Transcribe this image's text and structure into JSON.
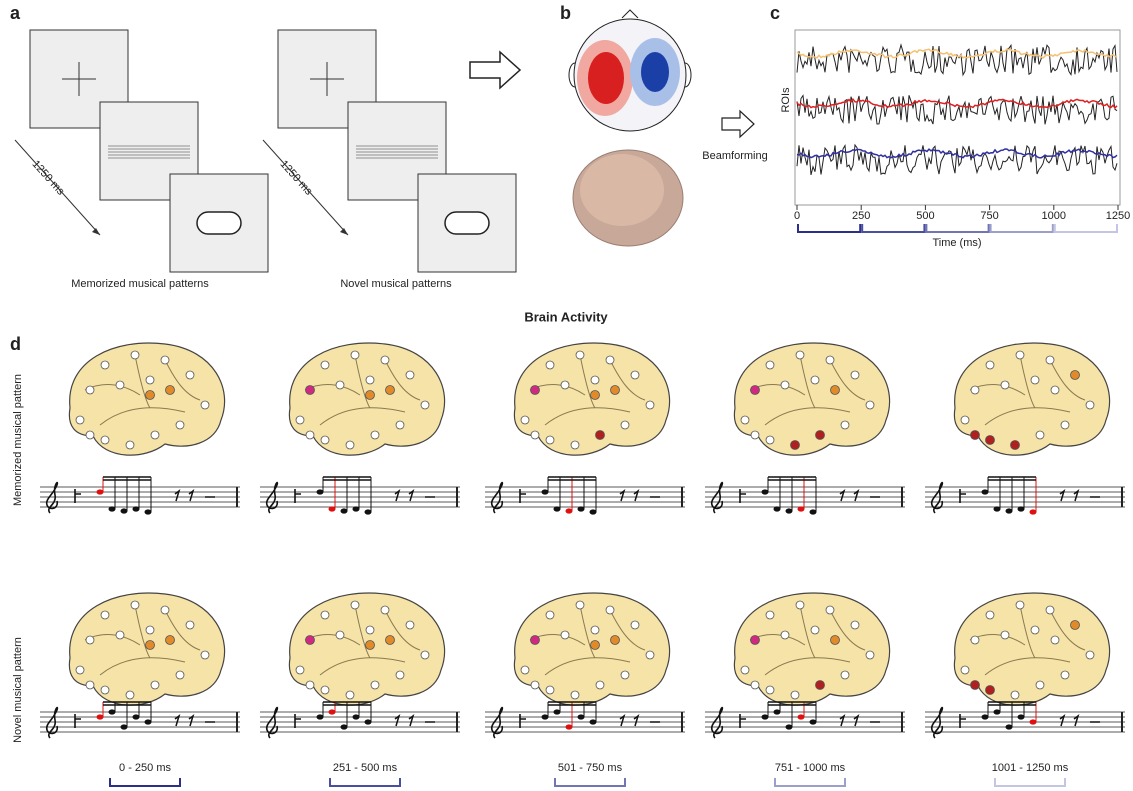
{
  "panel_a": {
    "label": "a",
    "interval_1": "1250 ms",
    "interval_2": "1250 ms",
    "caption_1": "Memorized musical patterns",
    "caption_2": "Novel musical patterns"
  },
  "panel_b": {
    "label": "b"
  },
  "panel_c": {
    "label": "c",
    "process": "Beamforming",
    "y_label": "ROIs",
    "x_label": "Time (ms)",
    "xlim": [
      0,
      1250
    ],
    "xticks": [
      0,
      250,
      500,
      750,
      1000,
      1250
    ]
  },
  "panel_d": {
    "label": "d",
    "title": "Brain Activity",
    "row_labels": [
      "Memorized musical pattern",
      "Novel musical pattern"
    ],
    "windows": [
      "0 - 250 ms",
      "251 - 500 ms",
      "501 - 750 ms",
      "751 - 1000 ms",
      "1001 - 1250 ms"
    ]
  }
}
